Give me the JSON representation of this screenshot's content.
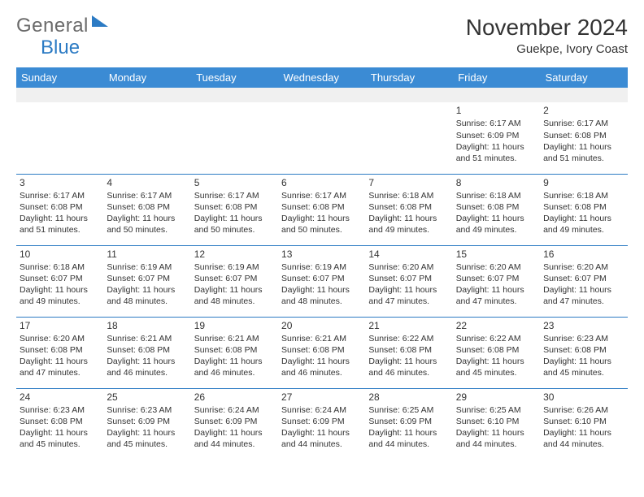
{
  "logo": {
    "text1": "General",
    "text2": "Blue"
  },
  "title": "November 2024",
  "subtitle": "Guekpe, Ivory Coast",
  "colors": {
    "header_bg": "#3b8bd4",
    "header_text": "#ffffff",
    "border": "#2c7bc4",
    "text": "#333333",
    "logo_gray": "#6a6a6a",
    "logo_blue": "#2c7bc4",
    "gray_row": "#f0f0f0"
  },
  "weekdays": [
    "Sunday",
    "Monday",
    "Tuesday",
    "Wednesday",
    "Thursday",
    "Friday",
    "Saturday"
  ],
  "weeks": [
    [
      null,
      null,
      null,
      null,
      null,
      {
        "n": "1",
        "sr": "Sunrise: 6:17 AM",
        "ss": "Sunset: 6:09 PM",
        "dl": "Daylight: 11 hours and 51 minutes."
      },
      {
        "n": "2",
        "sr": "Sunrise: 6:17 AM",
        "ss": "Sunset: 6:08 PM",
        "dl": "Daylight: 11 hours and 51 minutes."
      }
    ],
    [
      {
        "n": "3",
        "sr": "Sunrise: 6:17 AM",
        "ss": "Sunset: 6:08 PM",
        "dl": "Daylight: 11 hours and 51 minutes."
      },
      {
        "n": "4",
        "sr": "Sunrise: 6:17 AM",
        "ss": "Sunset: 6:08 PM",
        "dl": "Daylight: 11 hours and 50 minutes."
      },
      {
        "n": "5",
        "sr": "Sunrise: 6:17 AM",
        "ss": "Sunset: 6:08 PM",
        "dl": "Daylight: 11 hours and 50 minutes."
      },
      {
        "n": "6",
        "sr": "Sunrise: 6:17 AM",
        "ss": "Sunset: 6:08 PM",
        "dl": "Daylight: 11 hours and 50 minutes."
      },
      {
        "n": "7",
        "sr": "Sunrise: 6:18 AM",
        "ss": "Sunset: 6:08 PM",
        "dl": "Daylight: 11 hours and 49 minutes."
      },
      {
        "n": "8",
        "sr": "Sunrise: 6:18 AM",
        "ss": "Sunset: 6:08 PM",
        "dl": "Daylight: 11 hours and 49 minutes."
      },
      {
        "n": "9",
        "sr": "Sunrise: 6:18 AM",
        "ss": "Sunset: 6:08 PM",
        "dl": "Daylight: 11 hours and 49 minutes."
      }
    ],
    [
      {
        "n": "10",
        "sr": "Sunrise: 6:18 AM",
        "ss": "Sunset: 6:07 PM",
        "dl": "Daylight: 11 hours and 49 minutes."
      },
      {
        "n": "11",
        "sr": "Sunrise: 6:19 AM",
        "ss": "Sunset: 6:07 PM",
        "dl": "Daylight: 11 hours and 48 minutes."
      },
      {
        "n": "12",
        "sr": "Sunrise: 6:19 AM",
        "ss": "Sunset: 6:07 PM",
        "dl": "Daylight: 11 hours and 48 minutes."
      },
      {
        "n": "13",
        "sr": "Sunrise: 6:19 AM",
        "ss": "Sunset: 6:07 PM",
        "dl": "Daylight: 11 hours and 48 minutes."
      },
      {
        "n": "14",
        "sr": "Sunrise: 6:20 AM",
        "ss": "Sunset: 6:07 PM",
        "dl": "Daylight: 11 hours and 47 minutes."
      },
      {
        "n": "15",
        "sr": "Sunrise: 6:20 AM",
        "ss": "Sunset: 6:07 PM",
        "dl": "Daylight: 11 hours and 47 minutes."
      },
      {
        "n": "16",
        "sr": "Sunrise: 6:20 AM",
        "ss": "Sunset: 6:07 PM",
        "dl": "Daylight: 11 hours and 47 minutes."
      }
    ],
    [
      {
        "n": "17",
        "sr": "Sunrise: 6:20 AM",
        "ss": "Sunset: 6:08 PM",
        "dl": "Daylight: 11 hours and 47 minutes."
      },
      {
        "n": "18",
        "sr": "Sunrise: 6:21 AM",
        "ss": "Sunset: 6:08 PM",
        "dl": "Daylight: 11 hours and 46 minutes."
      },
      {
        "n": "19",
        "sr": "Sunrise: 6:21 AM",
        "ss": "Sunset: 6:08 PM",
        "dl": "Daylight: 11 hours and 46 minutes."
      },
      {
        "n": "20",
        "sr": "Sunrise: 6:21 AM",
        "ss": "Sunset: 6:08 PM",
        "dl": "Daylight: 11 hours and 46 minutes."
      },
      {
        "n": "21",
        "sr": "Sunrise: 6:22 AM",
        "ss": "Sunset: 6:08 PM",
        "dl": "Daylight: 11 hours and 46 minutes."
      },
      {
        "n": "22",
        "sr": "Sunrise: 6:22 AM",
        "ss": "Sunset: 6:08 PM",
        "dl": "Daylight: 11 hours and 45 minutes."
      },
      {
        "n": "23",
        "sr": "Sunrise: 6:23 AM",
        "ss": "Sunset: 6:08 PM",
        "dl": "Daylight: 11 hours and 45 minutes."
      }
    ],
    [
      {
        "n": "24",
        "sr": "Sunrise: 6:23 AM",
        "ss": "Sunset: 6:08 PM",
        "dl": "Daylight: 11 hours and 45 minutes."
      },
      {
        "n": "25",
        "sr": "Sunrise: 6:23 AM",
        "ss": "Sunset: 6:09 PM",
        "dl": "Daylight: 11 hours and 45 minutes."
      },
      {
        "n": "26",
        "sr": "Sunrise: 6:24 AM",
        "ss": "Sunset: 6:09 PM",
        "dl": "Daylight: 11 hours and 44 minutes."
      },
      {
        "n": "27",
        "sr": "Sunrise: 6:24 AM",
        "ss": "Sunset: 6:09 PM",
        "dl": "Daylight: 11 hours and 44 minutes."
      },
      {
        "n": "28",
        "sr": "Sunrise: 6:25 AM",
        "ss": "Sunset: 6:09 PM",
        "dl": "Daylight: 11 hours and 44 minutes."
      },
      {
        "n": "29",
        "sr": "Sunrise: 6:25 AM",
        "ss": "Sunset: 6:10 PM",
        "dl": "Daylight: 11 hours and 44 minutes."
      },
      {
        "n": "30",
        "sr": "Sunrise: 6:26 AM",
        "ss": "Sunset: 6:10 PM",
        "dl": "Daylight: 11 hours and 44 minutes."
      }
    ]
  ]
}
